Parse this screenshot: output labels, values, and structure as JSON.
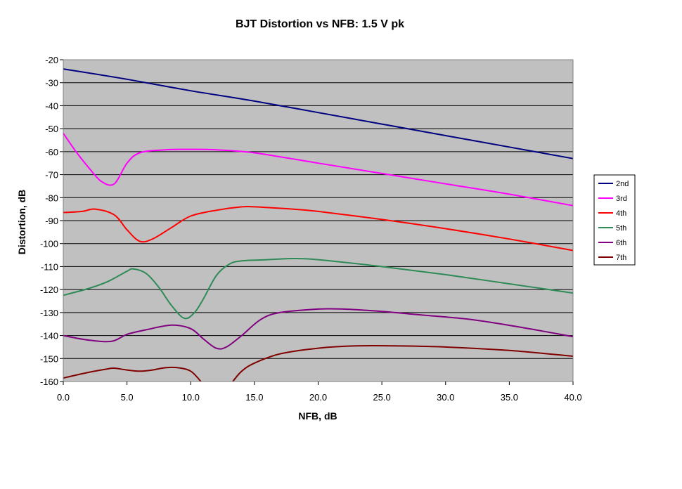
{
  "chart_data": {
    "type": "line",
    "title": "BJT Distortion vs NFB:  1.5 V pk",
    "xlabel": "NFB, dB",
    "ylabel": "Distortion, dB",
    "xlim": [
      0,
      40
    ],
    "ylim": [
      -160,
      -20
    ],
    "x_ticks": [
      "0.0",
      "5.0",
      "10.0",
      "15.0",
      "20.0",
      "25.0",
      "30.0",
      "35.0",
      "40.0"
    ],
    "y_ticks": [
      "-20",
      "-30",
      "-40",
      "-50",
      "-60",
      "-70",
      "-80",
      "-90",
      "-100",
      "-110",
      "-120",
      "-130",
      "-140",
      "-150",
      "-160"
    ],
    "grid": true,
    "legend_position": "right",
    "plot_background": "#c0c0c0",
    "series": [
      {
        "name": "2nd",
        "color": "#000080",
        "points": [
          [
            0,
            -24
          ],
          [
            5,
            -28.5
          ],
          [
            10,
            -33.5
          ],
          [
            15,
            -38
          ],
          [
            20,
            -43
          ],
          [
            25,
            -48
          ],
          [
            30,
            -53
          ],
          [
            35,
            -58
          ],
          [
            40,
            -63
          ]
        ]
      },
      {
        "name": "3rd",
        "color": "#ff00ff",
        "points": [
          [
            0,
            -52
          ],
          [
            1,
            -60
          ],
          [
            2,
            -67
          ],
          [
            3,
            -73
          ],
          [
            4,
            -74
          ],
          [
            5,
            -65
          ],
          [
            6,
            -60.5
          ],
          [
            8,
            -59.2
          ],
          [
            10,
            -59
          ],
          [
            12,
            -59.2
          ],
          [
            15,
            -60.5
          ],
          [
            20,
            -65
          ],
          [
            25,
            -69.5
          ],
          [
            30,
            -74
          ],
          [
            35,
            -78.5
          ],
          [
            40,
            -83.5
          ]
        ]
      },
      {
        "name": "4th",
        "color": "#ff0000",
        "points": [
          [
            0,
            -86.5
          ],
          [
            1.5,
            -86
          ],
          [
            2.5,
            -85
          ],
          [
            4,
            -87.5
          ],
          [
            5,
            -94
          ],
          [
            6,
            -99
          ],
          [
            7,
            -98
          ],
          [
            8.5,
            -93
          ],
          [
            10,
            -88
          ],
          [
            12,
            -85.5
          ],
          [
            14,
            -84
          ],
          [
            15,
            -84
          ],
          [
            18,
            -85
          ],
          [
            20,
            -86
          ],
          [
            25,
            -89.5
          ],
          [
            30,
            -93.5
          ],
          [
            35,
            -98
          ],
          [
            40,
            -103
          ]
        ]
      },
      {
        "name": "5th",
        "color": "#2e8b57",
        "points": [
          [
            0,
            -122.5
          ],
          [
            2,
            -119.5
          ],
          [
            3.5,
            -116.5
          ],
          [
            5,
            -112
          ],
          [
            5.5,
            -111
          ],
          [
            6.5,
            -113
          ],
          [
            7.5,
            -119
          ],
          [
            8.5,
            -127
          ],
          [
            9.5,
            -132.5
          ],
          [
            10.3,
            -130
          ],
          [
            11,
            -124
          ],
          [
            12,
            -114
          ],
          [
            13,
            -109
          ],
          [
            14,
            -107.5
          ],
          [
            16,
            -107
          ],
          [
            18,
            -106.5
          ],
          [
            20,
            -107
          ],
          [
            25,
            -110
          ],
          [
            30,
            -113.5
          ],
          [
            35,
            -117.5
          ],
          [
            40,
            -121.5
          ]
        ]
      },
      {
        "name": "6th",
        "color": "#800080",
        "points": [
          [
            0,
            -140
          ],
          [
            2,
            -142
          ],
          [
            3.8,
            -142.5
          ],
          [
            5,
            -139.5
          ],
          [
            6.5,
            -137.5
          ],
          [
            8.5,
            -135.5
          ],
          [
            10,
            -137
          ],
          [
            11,
            -141.5
          ],
          [
            12,
            -145.5
          ],
          [
            12.8,
            -145
          ],
          [
            14,
            -140
          ],
          [
            15.5,
            -133
          ],
          [
            17,
            -130
          ],
          [
            20,
            -128.5
          ],
          [
            22,
            -128.5
          ],
          [
            25,
            -129.5
          ],
          [
            28,
            -131
          ],
          [
            32,
            -133
          ],
          [
            36,
            -136.5
          ],
          [
            40,
            -140.5
          ]
        ]
      },
      {
        "name": "7th",
        "color": "#800000",
        "points": [
          [
            0,
            -158.5
          ],
          [
            2,
            -156
          ],
          [
            3.5,
            -154.5
          ],
          [
            4,
            -154.2
          ],
          [
            5,
            -155
          ],
          [
            6,
            -155.5
          ],
          [
            7,
            -155
          ],
          [
            8,
            -154
          ],
          [
            9,
            -154
          ],
          [
            10,
            -155.5
          ],
          [
            10.8,
            -160
          ],
          null,
          [
            13.3,
            -160
          ],
          [
            14,
            -155.5
          ],
          [
            15,
            -152
          ],
          [
            17,
            -148
          ],
          [
            20,
            -145.5
          ],
          [
            23,
            -144.5
          ],
          [
            26,
            -144.5
          ],
          [
            30,
            -145
          ],
          [
            35,
            -146.5
          ],
          [
            40,
            -149
          ]
        ]
      }
    ]
  }
}
